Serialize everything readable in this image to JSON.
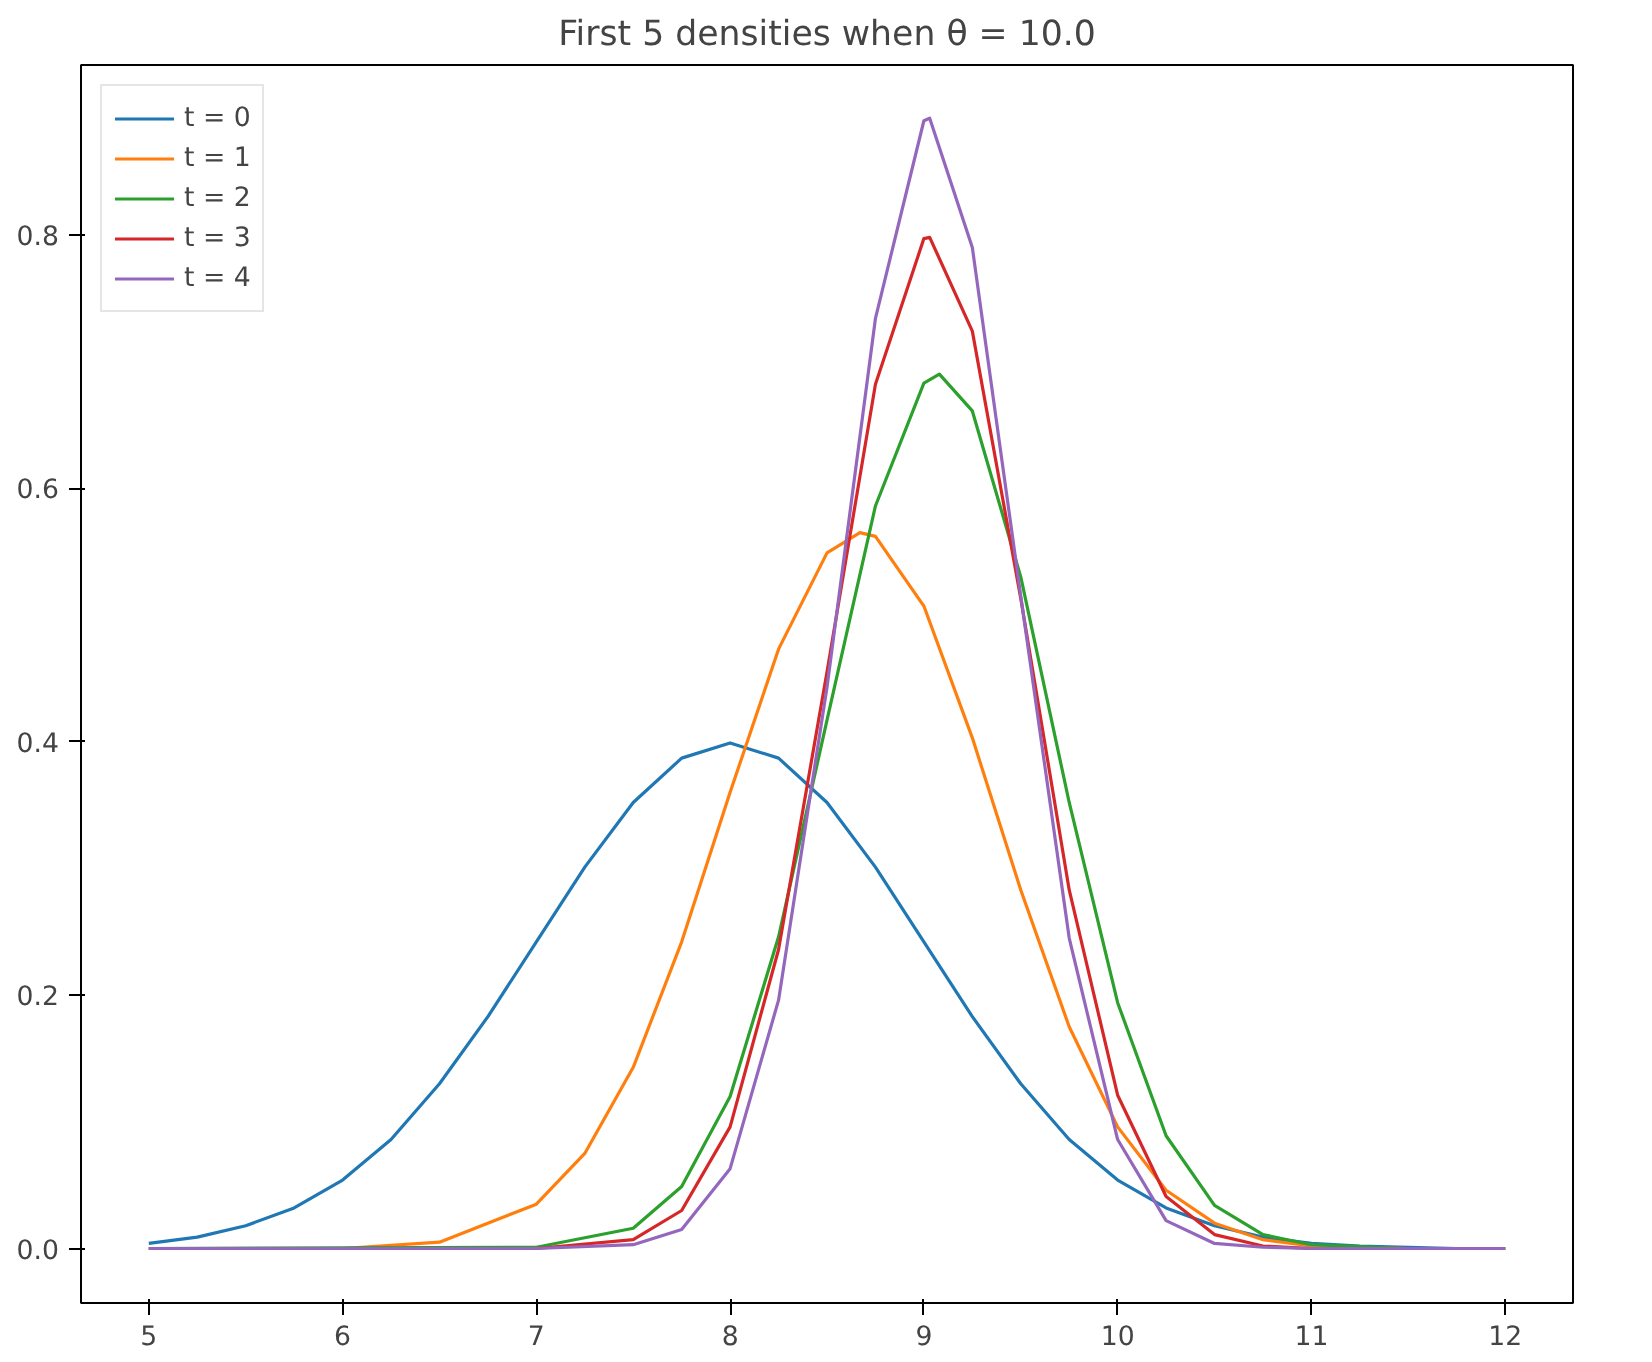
{
  "chart_data": {
    "type": "line",
    "title": "First 5 densities when θ = 10.0",
    "xlim": [
      4.65,
      12.35
    ],
    "ylim": [
      -0.043,
      0.934
    ],
    "xticks": [
      5,
      6,
      7,
      8,
      9,
      10,
      11,
      12
    ],
    "yticks": [
      {
        "value": 0,
        "label": "0.0"
      },
      {
        "value": 0.2,
        "label": "0.2"
      },
      {
        "value": 0.4,
        "label": "0.4"
      },
      {
        "value": 0.6,
        "label": "0.6"
      },
      {
        "value": 0.8,
        "label": "0.8"
      }
    ],
    "grid": false,
    "legend": "top left",
    "marker": "none",
    "line_style": "solid",
    "series": [
      {
        "name": "t = 0",
        "color": "#1f77b4",
        "x": [
          5,
          5.25,
          5.5,
          5.75,
          6,
          6.25,
          6.5,
          6.75,
          7,
          7.25,
          7.5,
          7.75,
          8,
          8.25,
          8.5,
          8.75,
          9,
          9.25,
          9.5,
          9.75,
          10,
          10.25,
          10.5,
          10.75,
          11,
          11.25,
          11.5,
          11.75,
          12
        ],
        "values": [
          0.004,
          0.009,
          0.018,
          0.032,
          0.054,
          0.086,
          0.13,
          0.183,
          0.242,
          0.301,
          0.352,
          0.387,
          0.399,
          0.387,
          0.352,
          0.301,
          0.242,
          0.183,
          0.13,
          0.086,
          0.054,
          0.032,
          0.018,
          0.009,
          0.004,
          0.002,
          0.001,
          0.0,
          0.0
        ]
      },
      {
        "name": "t = 1",
        "color": "#ff7f0e",
        "x": [
          5,
          6,
          6.5,
          7,
          7.25,
          7.5,
          7.75,
          8,
          8.25,
          8.5,
          8.67,
          8.75,
          9,
          9.25,
          9.5,
          9.75,
          10,
          10.25,
          10.5,
          10.75,
          11,
          11.5,
          12
        ],
        "values": [
          0.0,
          0.0,
          0.005,
          0.035,
          0.075,
          0.143,
          0.242,
          0.36,
          0.473,
          0.549,
          0.565,
          0.562,
          0.507,
          0.403,
          0.283,
          0.175,
          0.096,
          0.046,
          0.02,
          0.007,
          0.002,
          0.0,
          0.0
        ]
      },
      {
        "name": "t = 2",
        "color": "#2ca02c",
        "x": [
          5,
          7,
          7.5,
          7.75,
          8,
          8.25,
          8.5,
          8.75,
          9,
          9.08,
          9.25,
          9.5,
          9.75,
          10,
          10.25,
          10.5,
          10.75,
          11,
          11.5,
          12
        ],
        "values": [
          0.0,
          0.001,
          0.016,
          0.049,
          0.12,
          0.246,
          0.417,
          0.586,
          0.683,
          0.69,
          0.661,
          0.53,
          0.352,
          0.194,
          0.089,
          0.034,
          0.011,
          0.003,
          0.0,
          0.0
        ]
      },
      {
        "name": "t = 3",
        "color": "#d62728",
        "x": [
          5,
          7,
          7.5,
          7.75,
          8,
          8.25,
          8.5,
          8.75,
          9,
          9.03,
          9.25,
          9.5,
          9.75,
          10,
          10.25,
          10.5,
          10.75,
          11,
          12
        ],
        "values": [
          0.0,
          0.0,
          0.007,
          0.03,
          0.096,
          0.236,
          0.455,
          0.682,
          0.797,
          0.798,
          0.724,
          0.513,
          0.283,
          0.121,
          0.041,
          0.011,
          0.002,
          0.0,
          0.0
        ]
      },
      {
        "name": "t = 4",
        "color": "#9467bd",
        "x": [
          5,
          7,
          7.5,
          7.75,
          8,
          8.25,
          8.5,
          8.75,
          9,
          9.03,
          9.25,
          9.5,
          9.75,
          10,
          10.25,
          10.5,
          10.75,
          11,
          12
        ],
        "values": [
          0.0,
          0.0,
          0.003,
          0.015,
          0.063,
          0.196,
          0.443,
          0.734,
          0.89,
          0.892,
          0.79,
          0.515,
          0.245,
          0.086,
          0.022,
          0.004,
          0.001,
          0.0,
          0.0
        ]
      }
    ]
  }
}
